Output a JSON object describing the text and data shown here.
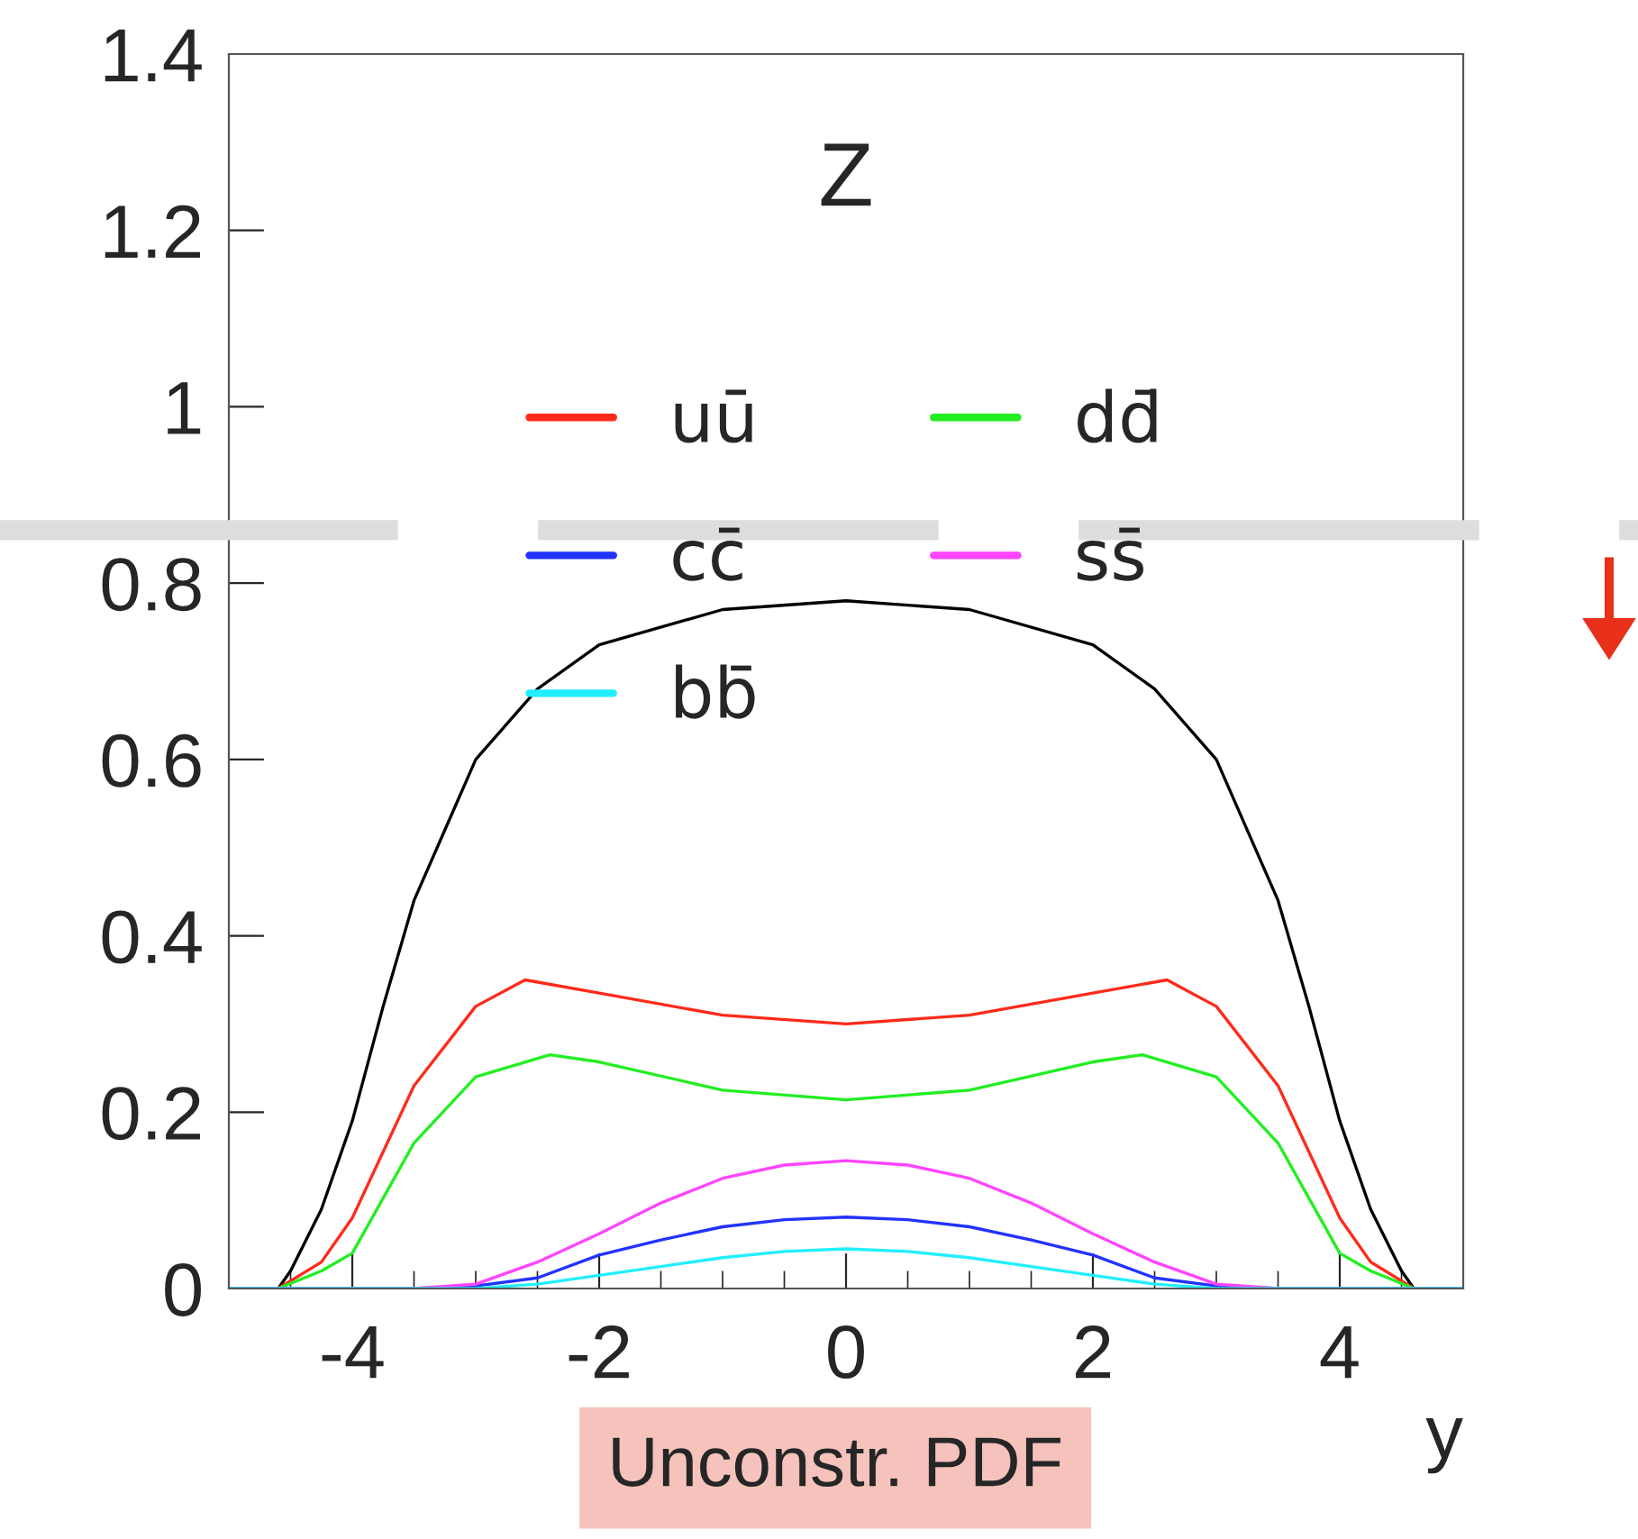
{
  "chart_data": {
    "type": "line",
    "xlabel": "y",
    "annotations": [
      "Z",
      "Unconstr. PDF"
    ],
    "xlim": [
      -5,
      5
    ],
    "xticks": [
      -4,
      -2,
      0,
      2,
      4
    ],
    "ylim": [
      0,
      1.4
    ],
    "yticks": [
      0,
      0.2,
      0.4,
      0.6,
      0.8,
      1,
      1.2,
      1.4
    ],
    "grid": false,
    "legend": "top",
    "marker": "none",
    "line_style": "solid",
    "ref_lines": [
      {
        "axis": "y",
        "value": 0.86,
        "color": "#dddddd",
        "line_style": "dashed"
      }
    ],
    "series": [
      {
        "color": "#000000",
        "x": [
          -5,
          -4.6,
          -4.5,
          -4.25,
          -4,
          -3.75,
          -3.5,
          -3,
          -2.5,
          -2,
          -1,
          0,
          1,
          2,
          2.5,
          3,
          3.5,
          3.75,
          4,
          4.25,
          4.5,
          4.6,
          5
        ],
        "values": [
          0,
          0,
          0.02,
          0.09,
          0.19,
          0.32,
          0.44,
          0.6,
          0.68,
          0.73,
          0.77,
          0.78,
          0.77,
          0.73,
          0.68,
          0.6,
          0.44,
          0.32,
          0.19,
          0.09,
          0.02,
          0,
          0
        ]
      },
      {
        "name": "uū",
        "color": "#ff2a1a",
        "x": [
          -5,
          -4.6,
          -4.25,
          -4,
          -3.5,
          -3,
          -2.6,
          -2,
          -1,
          0,
          1,
          2,
          2.6,
          3,
          3.5,
          4,
          4.25,
          4.6,
          5
        ],
        "values": [
          0,
          0,
          0.03,
          0.08,
          0.23,
          0.32,
          0.35,
          0.335,
          0.31,
          0.3,
          0.31,
          0.335,
          0.35,
          0.32,
          0.23,
          0.08,
          0.03,
          0,
          0
        ]
      },
      {
        "name": "dd̄",
        "color": "#22ee22",
        "x": [
          -5,
          -4.6,
          -4.25,
          -4,
          -3.5,
          -3,
          -2.4,
          -2,
          -1,
          0,
          1,
          2,
          2.4,
          3,
          3.5,
          4,
          4.25,
          4.6,
          5
        ],
        "values": [
          0,
          0,
          0.02,
          0.04,
          0.165,
          0.24,
          0.265,
          0.257,
          0.225,
          0.214,
          0.225,
          0.257,
          0.265,
          0.24,
          0.165,
          0.04,
          0.02,
          0,
          0
        ]
      },
      {
        "name": "cc̄",
        "color": "#2233ff",
        "x": [
          -5,
          -3.5,
          -3,
          -2.5,
          -2,
          -1.5,
          -1,
          -0.5,
          0,
          0.5,
          1,
          1.5,
          2,
          2.5,
          3,
          3.5,
          5
        ],
        "values": [
          0,
          0,
          0.003,
          0.012,
          0.038,
          0.055,
          0.07,
          0.078,
          0.081,
          0.078,
          0.07,
          0.055,
          0.038,
          0.012,
          0.003,
          0,
          0
        ]
      },
      {
        "name": "ss̄",
        "color": "#ff44ff",
        "x": [
          -5,
          -3.5,
          -3,
          -2.5,
          -2,
          -1.5,
          -1,
          -0.5,
          0,
          0.5,
          1,
          1.5,
          2,
          2.5,
          3,
          3.5,
          5
        ],
        "values": [
          0,
          0,
          0.005,
          0.03,
          0.062,
          0.097,
          0.125,
          0.14,
          0.145,
          0.14,
          0.125,
          0.097,
          0.062,
          0.03,
          0.005,
          0,
          0
        ]
      },
      {
        "name": "bb̄",
        "color": "#22eeff",
        "x": [
          -5,
          -3,
          -2.5,
          -2,
          -1.5,
          -1,
          -0.5,
          0,
          0.5,
          1,
          1.5,
          2,
          2.5,
          3,
          5
        ],
        "values": [
          0,
          0,
          0.005,
          0.015,
          0.025,
          0.035,
          0.042,
          0.045,
          0.042,
          0.035,
          0.025,
          0.015,
          0.005,
          0,
          0
        ]
      }
    ]
  }
}
